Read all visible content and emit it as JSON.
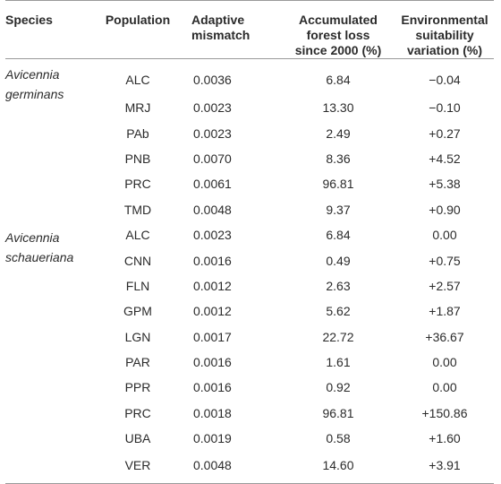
{
  "headers": {
    "species": "Species",
    "population": "Population",
    "mismatch_l1": "Adaptive",
    "mismatch_l2": "mismatch",
    "loss_l1": "Accumulated",
    "loss_l2": "forest loss",
    "loss_l3": "since 2000 (%)",
    "env_l1": "Environmental",
    "env_l2": "suitability",
    "env_l3": "variation (%)"
  },
  "species_a_l1": "Avicennia",
  "species_a_l2": "germinans",
  "species_b_l1": "Avicennia",
  "species_b_l2": "schaueriana",
  "rows": [
    {
      "pop": "ALC",
      "mismatch": "0.0036",
      "loss": "6.84",
      "env": "−0.04"
    },
    {
      "pop": "MRJ",
      "mismatch": "0.0023",
      "loss": "13.30",
      "env": "−0.10"
    },
    {
      "pop": "PAb",
      "mismatch": "0.0023",
      "loss": "2.49",
      "env": "+0.27"
    },
    {
      "pop": "PNB",
      "mismatch": "0.0070",
      "loss": "8.36",
      "env": "+4.52"
    },
    {
      "pop": "PRC",
      "mismatch": "0.0061",
      "loss": "96.81",
      "env": "+5.38"
    },
    {
      "pop": "TMD",
      "mismatch": "0.0048",
      "loss": "9.37",
      "env": "+0.90"
    },
    {
      "pop": "ALC",
      "mismatch": "0.0023",
      "loss": "6.84",
      "env": "0.00"
    },
    {
      "pop": "CNN",
      "mismatch": "0.0016",
      "loss": "0.49",
      "env": "+0.75"
    },
    {
      "pop": "FLN",
      "mismatch": "0.0012",
      "loss": "2.63",
      "env": "+2.57"
    },
    {
      "pop": "GPM",
      "mismatch": "0.0012",
      "loss": "5.62",
      "env": "+1.87"
    },
    {
      "pop": "LGN",
      "mismatch": "0.0017",
      "loss": "22.72",
      "env": "+36.67"
    },
    {
      "pop": "PAR",
      "mismatch": "0.0016",
      "loss": "1.61",
      "env": "0.00"
    },
    {
      "pop": "PPR",
      "mismatch": "0.0016",
      "loss": "0.92",
      "env": "0.00"
    },
    {
      "pop": "PRC",
      "mismatch": "0.0018",
      "loss": "96.81",
      "env": "+150.86"
    },
    {
      "pop": "UBA",
      "mismatch": "0.0019",
      "loss": "0.58",
      "env": "+1.60"
    },
    {
      "pop": "VER",
      "mismatch": "0.0048",
      "loss": "14.60",
      "env": "+3.91"
    }
  ]
}
